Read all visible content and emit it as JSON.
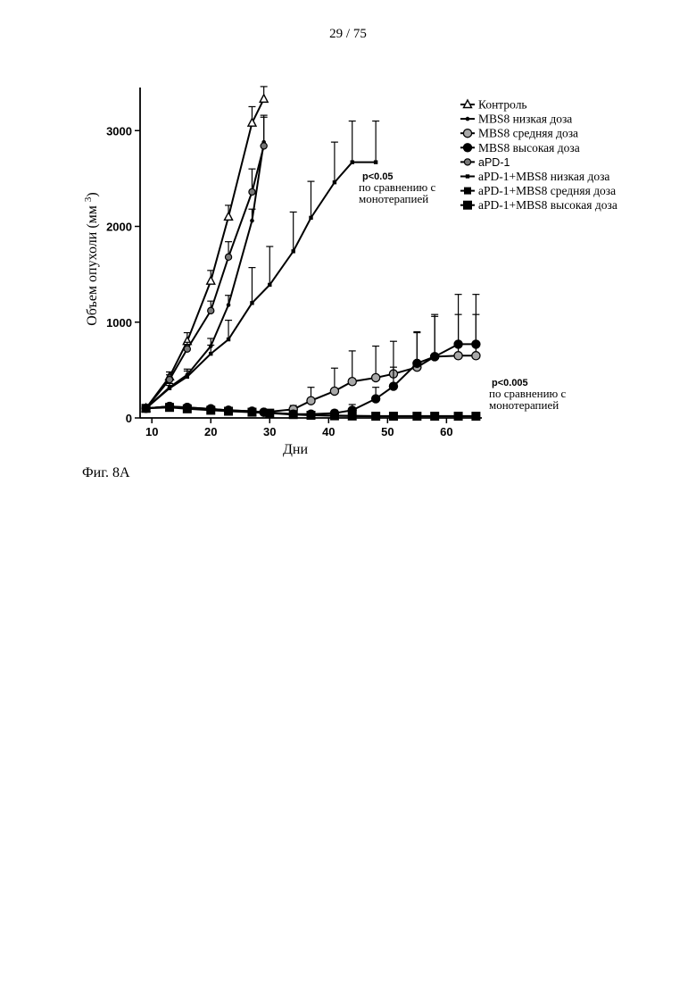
{
  "page": {
    "number": "29 / 75"
  },
  "caption": "Фиг. 8A",
  "chart_data": {
    "type": "line",
    "xlabel": "Дни",
    "ylabel": "Объем опухоли (мм",
    "ylabel_sup": "3",
    "ylabel_close": ")",
    "xlim": [
      8,
      66
    ],
    "ylim": [
      0,
      3450
    ],
    "x_ticks": [
      10,
      20,
      30,
      40,
      50,
      60
    ],
    "y_ticks": [
      0,
      1000,
      2000,
      3000
    ],
    "legend_position": "top-right",
    "series": [
      {
        "name": "Контроль",
        "marker": "triangle",
        "label_font": "serif",
        "x": [
          9,
          13,
          16,
          20,
          23,
          27,
          29
        ],
        "y": [
          100,
          430,
          800,
          1430,
          2100,
          3080,
          3330
        ],
        "err": [
          0,
          50,
          90,
          110,
          120,
          170,
          130
        ]
      },
      {
        "name": "MBS8 низкая доза",
        "marker": "small-dot",
        "label_font": "serif",
        "x": [
          9,
          13,
          16,
          20,
          23,
          27,
          29
        ],
        "y": [
          100,
          320,
          450,
          750,
          1180,
          2060,
          2880
        ],
        "err": [
          0,
          40,
          60,
          80,
          100,
          120,
          280
        ]
      },
      {
        "name": "MBS8 средняя доза",
        "marker": "gray-circle",
        "label_font": "serif",
        "x": [
          9,
          13,
          16,
          20,
          23,
          27,
          29,
          34,
          37,
          41,
          44,
          48,
          51,
          55,
          58,
          62,
          65
        ],
        "y": [
          100,
          120,
          110,
          95,
          80,
          70,
          60,
          90,
          180,
          280,
          380,
          420,
          460,
          530,
          640,
          650,
          650
        ],
        "err": [
          0,
          20,
          20,
          20,
          20,
          15,
          15,
          40,
          140,
          240,
          320,
          330,
          340,
          370,
          420,
          430,
          430
        ]
      },
      {
        "name": "MBS8 высокая доза",
        "marker": "black-circle",
        "label_font": "serif",
        "x": [
          9,
          13,
          16,
          20,
          23,
          27,
          29,
          34,
          37,
          41,
          44,
          48,
          51,
          55,
          58,
          62,
          65
        ],
        "y": [
          100,
          120,
          110,
          95,
          80,
          70,
          60,
          40,
          40,
          50,
          80,
          200,
          330,
          570,
          640,
          770,
          770
        ],
        "err": [
          0,
          20,
          20,
          20,
          20,
          15,
          15,
          15,
          20,
          30,
          60,
          120,
          200,
          320,
          440,
          520,
          520
        ]
      },
      {
        "name": "aPD-1",
        "marker": "ring-circle",
        "label_font": "sans",
        "x": [
          9,
          13,
          16,
          20,
          23,
          27,
          29
        ],
        "y": [
          100,
          400,
          720,
          1120,
          1680,
          2360,
          2840
        ],
        "err": [
          0,
          50,
          70,
          100,
          160,
          240,
          300
        ]
      },
      {
        "name": "aPD-1+MBS8 низкая доза",
        "marker": "small-square",
        "label_font": "serif",
        "x": [
          9,
          13,
          16,
          20,
          23,
          27,
          30,
          34,
          37,
          41,
          44,
          48
        ],
        "y": [
          100,
          310,
          430,
          670,
          820,
          1200,
          1390,
          1740,
          2090,
          2460,
          2670,
          2670
        ],
        "err": [
          0,
          30,
          60,
          90,
          200,
          370,
          400,
          410,
          380,
          420,
          430,
          430
        ]
      },
      {
        "name": "aPD-1+MBS8 средняя доза",
        "marker": "medium-square",
        "label_font": "serif",
        "x": [
          9,
          13,
          16,
          20,
          23,
          27,
          30,
          34,
          37,
          41,
          44,
          48,
          51,
          55,
          58,
          62,
          65
        ],
        "y": [
          100,
          120,
          100,
          85,
          75,
          65,
          55,
          40,
          30,
          25,
          22,
          20,
          20,
          20,
          20,
          20,
          20
        ],
        "err": [
          0,
          0,
          0,
          0,
          0,
          0,
          0,
          0,
          0,
          0,
          0,
          0,
          0,
          0,
          0,
          0,
          0
        ]
      },
      {
        "name": "aPD-1+MBS8 высокая доза",
        "marker": "large-square",
        "label_font": "serif",
        "x": [
          9,
          13,
          16,
          20,
          23,
          27,
          30,
          34,
          37,
          41,
          44,
          48,
          51,
          55,
          58,
          62,
          65
        ],
        "y": [
          100,
          110,
          95,
          80,
          70,
          60,
          50,
          35,
          28,
          22,
          20,
          18,
          18,
          18,
          18,
          18,
          18
        ],
        "err": [
          0,
          0,
          0,
          0,
          0,
          0,
          0,
          0,
          0,
          0,
          0,
          0,
          0,
          0,
          0,
          0,
          0
        ]
      }
    ],
    "annotations": [
      {
        "p": "p<0.05",
        "line1": "по сравнению с",
        "line2": "монотерапией"
      },
      {
        "p": "p<0.005",
        "line1": "по сравнению с",
        "line2": "монотерапией"
      }
    ]
  }
}
